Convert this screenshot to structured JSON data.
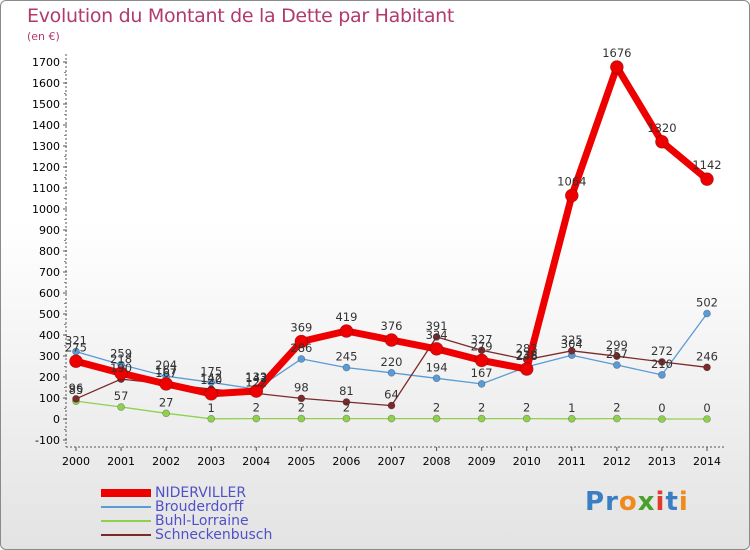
{
  "title": "Evolution du Montant de la Dette par Habitant",
  "unit_label": "(en €)",
  "brand": {
    "name": "Proxiti",
    "letters": [
      "P",
      "r",
      "o",
      "x",
      "i",
      "t",
      "i"
    ],
    "colors": [
      "#3a7fc4",
      "#3a7fc4",
      "#f08a1a",
      "#4aa02c",
      "#e23a28",
      "#3a7fc4",
      "#f08a1a"
    ]
  },
  "chart_data": {
    "type": "line",
    "title": "Evolution du Montant de la Dette par Habitant",
    "ylabel": "(en €)",
    "xlabel": "",
    "x": [
      2000,
      2001,
      2002,
      2003,
      2004,
      2005,
      2006,
      2007,
      2008,
      2009,
      2010,
      2011,
      2012,
      2013,
      2014
    ],
    "ylim": [
      -100,
      1700
    ],
    "yticks": [
      -100,
      0,
      100,
      200,
      300,
      400,
      500,
      600,
      700,
      800,
      900,
      1000,
      1100,
      1200,
      1300,
      1400,
      1500,
      1600,
      1700
    ],
    "grid": false,
    "legend": "bottom-left",
    "series": [
      {
        "name": "Brouderdorff",
        "color": "#5b9bd5",
        "width": 1.3,
        "marker_r": 3.5,
        "values": [
          321,
          259,
          204,
          175,
          142,
          286,
          245,
          220,
          194,
          167,
          248,
          304,
          257,
          210,
          502
        ],
        "labels": [
          "321",
          "259",
          "204",
          "175",
          "142",
          "286",
          "245",
          "220",
          "194",
          "167",
          "248",
          "304",
          "257",
          "210",
          "502"
        ],
        "show_labels": [
          true,
          true,
          true,
          true,
          true,
          true,
          true,
          true,
          true,
          true,
          true,
          true,
          true,
          true,
          true
        ]
      },
      {
        "name": "Buhl-Lorraine",
        "color": "#8fd14f",
        "width": 1.3,
        "marker_r": 3.5,
        "values": [
          85,
          57,
          27,
          1,
          2,
          2,
          2,
          2,
          2,
          2,
          2,
          1,
          2,
          0,
          0
        ],
        "labels": [
          "85",
          "57",
          "27",
          "1",
          "2",
          "2",
          "2",
          "2",
          "2",
          "2",
          "2",
          "1",
          "2",
          "0",
          "0"
        ],
        "show_labels": [
          true,
          true,
          true,
          true,
          true,
          true,
          true,
          false,
          true,
          true,
          true,
          true,
          true,
          true,
          true
        ]
      },
      {
        "name": "Schneckenbusch",
        "color": "#7a2a2a",
        "width": 1.3,
        "marker_r": 3.5,
        "values": [
          96,
          190,
          167,
          142,
          122,
          98,
          81,
          64,
          391,
          327,
          283,
          325,
          299,
          272,
          246
        ],
        "labels": [
          "96",
          "190",
          "167",
          "142",
          "122",
          "98",
          "81",
          "64",
          "391",
          "327",
          "283",
          "325",
          "299",
          "272",
          "246"
        ],
        "show_labels": [
          true,
          true,
          true,
          true,
          true,
          true,
          true,
          true,
          true,
          true,
          true,
          true,
          true,
          true,
          true
        ]
      },
      {
        "name": "NIDERVILLER",
        "color": "#ee0000",
        "width": 7,
        "marker_r": 6.5,
        "values": [
          275,
          218,
          167,
          120,
          133,
          369,
          419,
          376,
          334,
          279,
          238,
          1064,
          1676,
          1320,
          1142
        ],
        "labels": [
          "275",
          "218",
          "167",
          "120",
          "133",
          "369",
          "419",
          "376",
          "334",
          "279",
          "238",
          "1064",
          "1676",
          "1320",
          "1142"
        ],
        "show_labels": [
          true,
          true,
          true,
          true,
          true,
          true,
          true,
          true,
          true,
          true,
          true,
          true,
          true,
          true,
          true
        ]
      }
    ],
    "legend_items": [
      {
        "name": "NIDERVILLER",
        "color": "#ee0000",
        "width": 8
      },
      {
        "name": "Brouderdorff",
        "color": "#5b9bd5",
        "width": 2
      },
      {
        "name": "Buhl-Lorraine",
        "color": "#8fd14f",
        "width": 2
      },
      {
        "name": "Schneckenbusch",
        "color": "#7a2a2a",
        "width": 2
      }
    ]
  }
}
